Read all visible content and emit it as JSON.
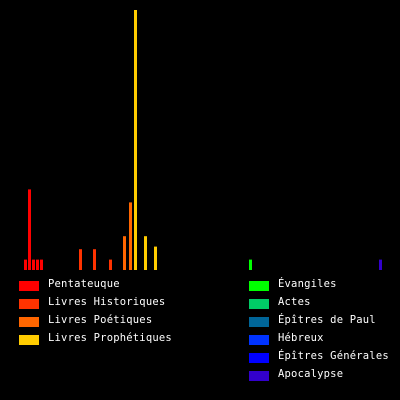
{
  "chart_data": {
    "type": "bar",
    "ylim": [
      0,
      100
    ],
    "groups": [
      {
        "name": "Pentateuque",
        "color": "#ff0000",
        "values": [
          4,
          31,
          4,
          4,
          4
        ]
      },
      {
        "name": "Livres Historiques",
        "color": "#ff3300",
        "values": [
          8,
          8,
          4
        ]
      },
      {
        "name": "Livres Poétiques",
        "color": "#ff6600",
        "values": [
          13,
          26
        ]
      },
      {
        "name": "Livres Prophétiques",
        "color": "#ffcc00",
        "values": [
          100,
          13,
          9
        ]
      },
      {
        "name": "Évangiles",
        "color": "#00ff00",
        "values": [
          4
        ]
      },
      {
        "name": "Actes",
        "color": "#00cc66",
        "values": []
      },
      {
        "name": "Épîtres de Paul",
        "color": "#006699",
        "values": []
      },
      {
        "name": "Hébreux",
        "color": "#0033ff",
        "values": []
      },
      {
        "name": "Épîtres Générales",
        "color": "#0000ff",
        "values": []
      },
      {
        "name": "Apocalypse",
        "color": "#3300cc",
        "values": [
          4
        ]
      }
    ],
    "grid": false,
    "legend": "bottom"
  }
}
